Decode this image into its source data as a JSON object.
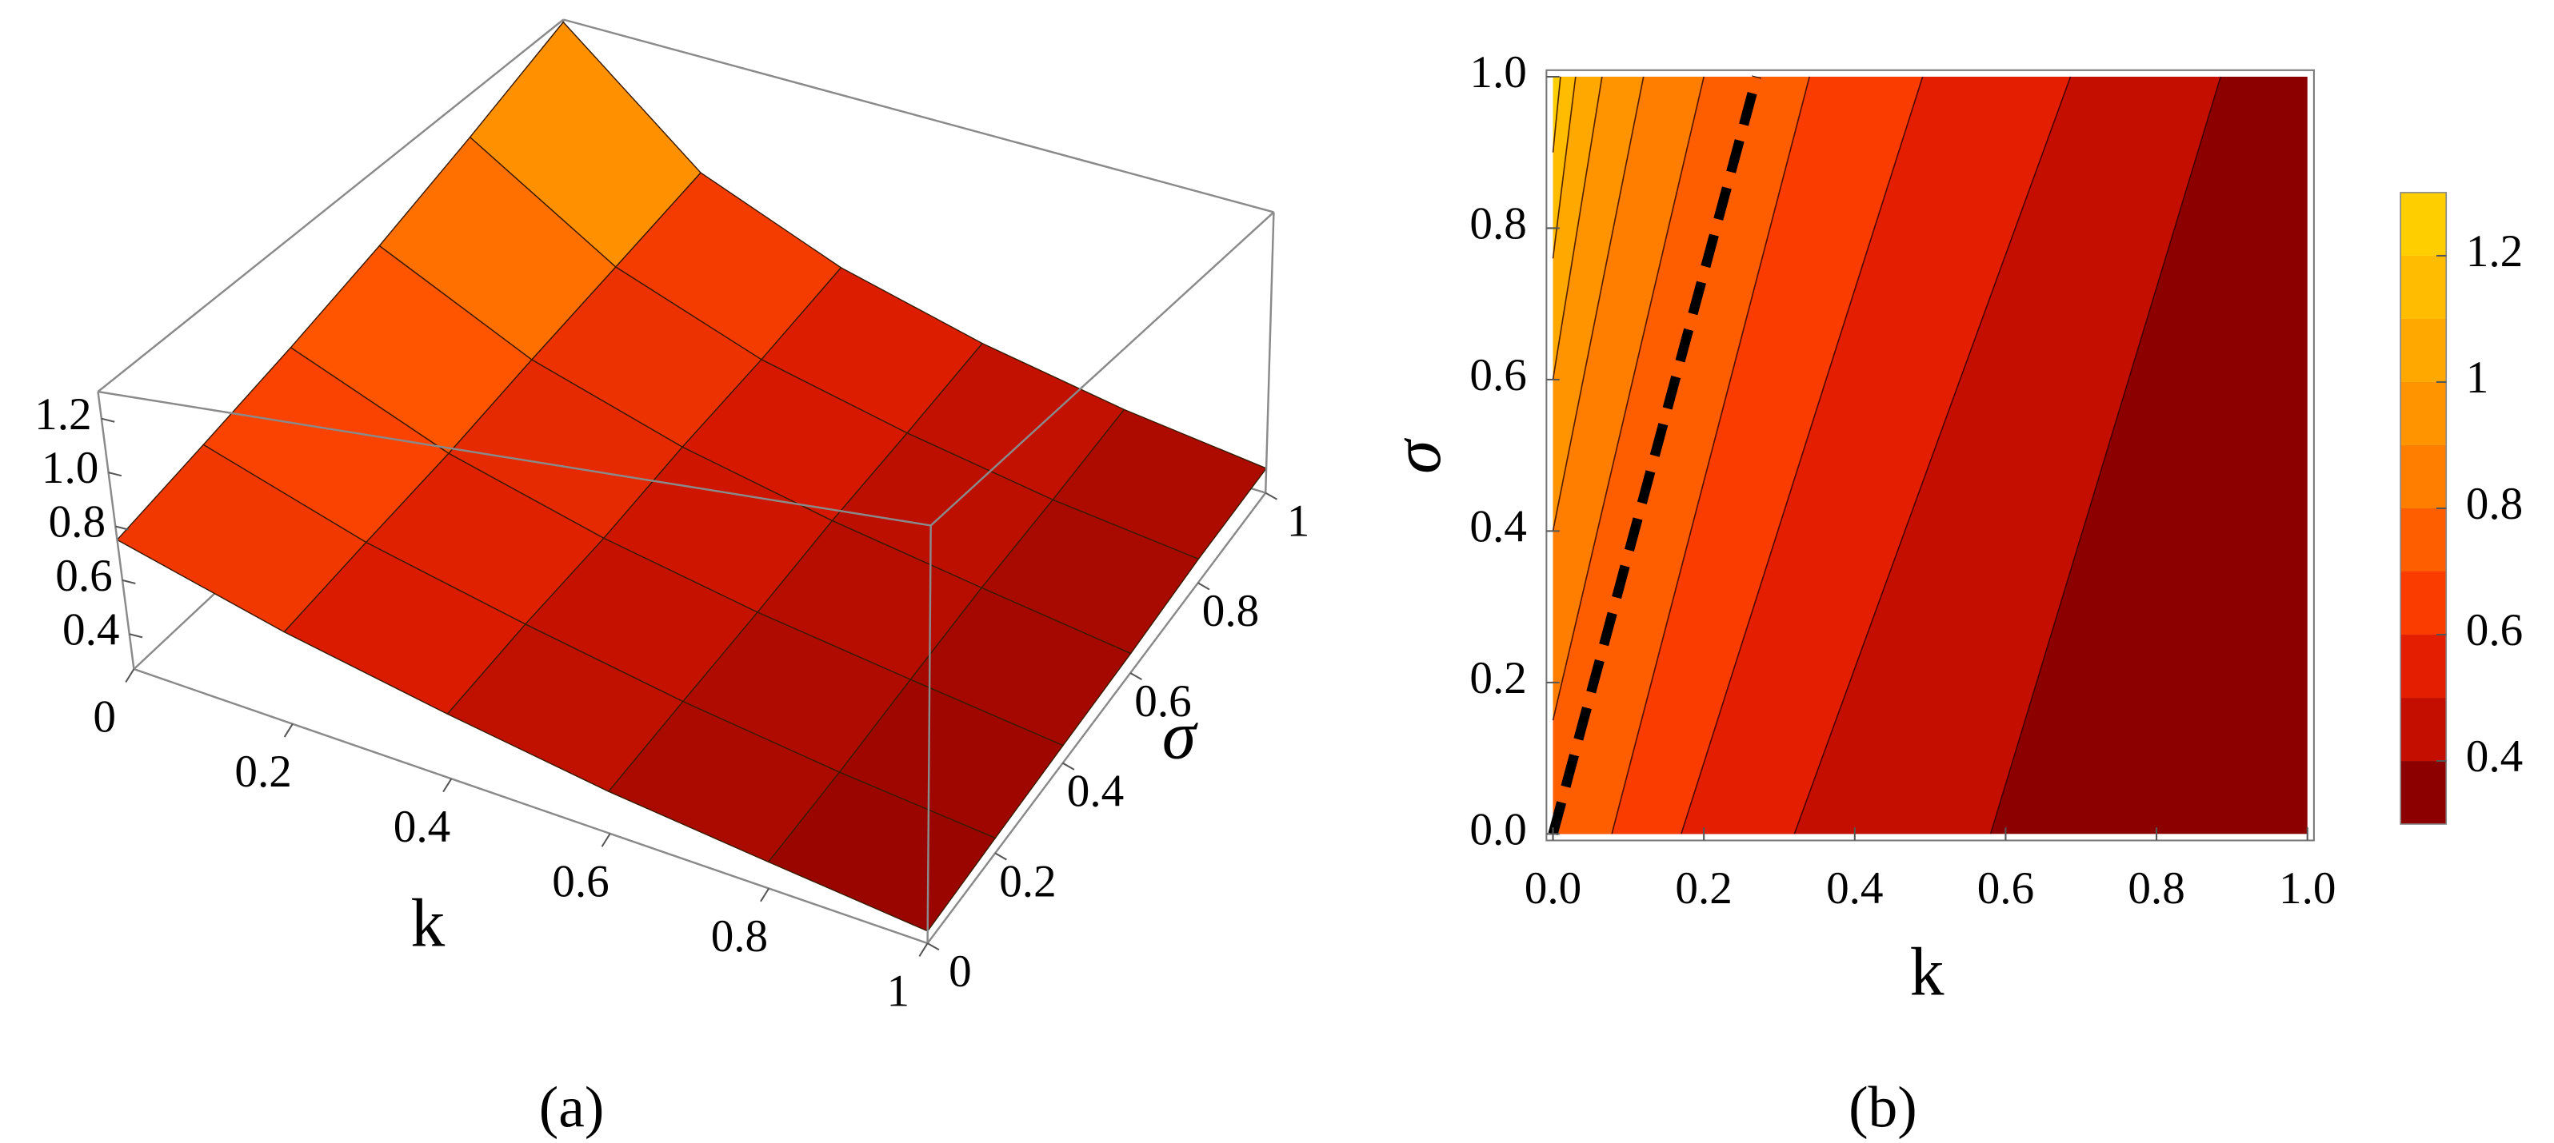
{
  "chart_data": [
    {
      "type": "surface3d",
      "caption": "(a)",
      "xlabel": "k",
      "ylabel": "σ",
      "x": [
        0,
        0.2,
        0.4,
        0.6,
        0.8,
        1
      ],
      "y": [
        0,
        0.2,
        0.4,
        0.6,
        0.8,
        1
      ],
      "z": [
        [
          0.75,
          0.58,
          0.47,
          0.39,
          0.34,
          0.3
        ],
        [
          0.82,
          0.62,
          0.5,
          0.41,
          0.35,
          0.31
        ],
        [
          0.9,
          0.66,
          0.52,
          0.43,
          0.37,
          0.32
        ],
        [
          1.0,
          0.72,
          0.56,
          0.46,
          0.39,
          0.33
        ],
        [
          1.13,
          0.78,
          0.59,
          0.48,
          0.4,
          0.35
        ],
        [
          1.29,
          0.85,
          0.64,
          0.51,
          0.42,
          0.36
        ]
      ],
      "xlim": [
        0,
        1
      ],
      "ylim": [
        0,
        1
      ],
      "zlim": [
        0.27,
        1.3
      ],
      "xticks": [
        0,
        0.2,
        0.4,
        0.6,
        0.8,
        1
      ],
      "yticks": [
        0,
        0.2,
        0.4,
        0.6,
        0.8,
        1
      ],
      "zticks": [
        0.4,
        0.6,
        0.8,
        {
          "value": 1,
          "label": "1.0"
        },
        1.2
      ],
      "colors": [
        "#8b0000",
        "#d81800",
        "#ff4a00",
        "#ff9a00",
        "#ffe000"
      ]
    },
    {
      "type": "contour",
      "caption": "(b)",
      "xlabel": "k",
      "ylabel": "σ",
      "xlim": [
        0,
        1
      ],
      "ylim": [
        0,
        1
      ],
      "xticks": [
        {
          "value": 0,
          "label": "0.0"
        },
        0.2,
        0.4,
        0.6,
        0.8,
        {
          "value": 1,
          "label": "1.0"
        }
      ],
      "yticks": [
        {
          "value": 0,
          "label": "0.0"
        },
        0.2,
        0.4,
        0.6,
        0.8,
        {
          "value": 1,
          "label": "1.0"
        }
      ],
      "contours": [
        {
          "level": 0.4,
          "k": [
            0.58,
            0.885
          ],
          "sigma": [
            0,
            1
          ]
        },
        {
          "level": 0.5,
          "k": [
            0.32,
            0.686
          ],
          "sigma": [
            0,
            1
          ]
        },
        {
          "level": 0.6,
          "k": [
            0.17,
            0.49
          ],
          "sigma": [
            0,
            1
          ]
        },
        {
          "level": 0.7,
          "k": [
            0.078,
            0.34
          ],
          "sigma": [
            0,
            1
          ]
        },
        {
          "level": 0.8,
          "k": [
            0,
            0.2
          ],
          "sigma": [
            0.15,
            1
          ]
        },
        {
          "level": 0.9,
          "k": [
            0,
            0.12
          ],
          "sigma": [
            0.4,
            1
          ]
        },
        {
          "level": 1.0,
          "k": [
            0,
            0.065
          ],
          "sigma": [
            0.6,
            1
          ]
        },
        {
          "level": 1.1,
          "k": [
            0,
            0.03
          ],
          "sigma": [
            0.76,
            1
          ]
        },
        {
          "level": 1.2,
          "k": [
            0,
            0.01
          ],
          "sigma": [
            0.9,
            1
          ]
        }
      ],
      "band_colors": [
        "#8c0000",
        "#c40e00",
        "#e41e00",
        "#fa3c00",
        "#ff5e00",
        "#ff7e00",
        "#ff9400",
        "#ffa800",
        "#ffbc00",
        "#ffce00"
      ],
      "dashed_line": {
        "k": [
          0,
          0.27
        ],
        "sigma": [
          0,
          1
        ]
      },
      "clim": [
        0.3,
        1.3
      ],
      "cticks": [
        0.4,
        0.6,
        0.8,
        1,
        1.2
      ]
    }
  ]
}
